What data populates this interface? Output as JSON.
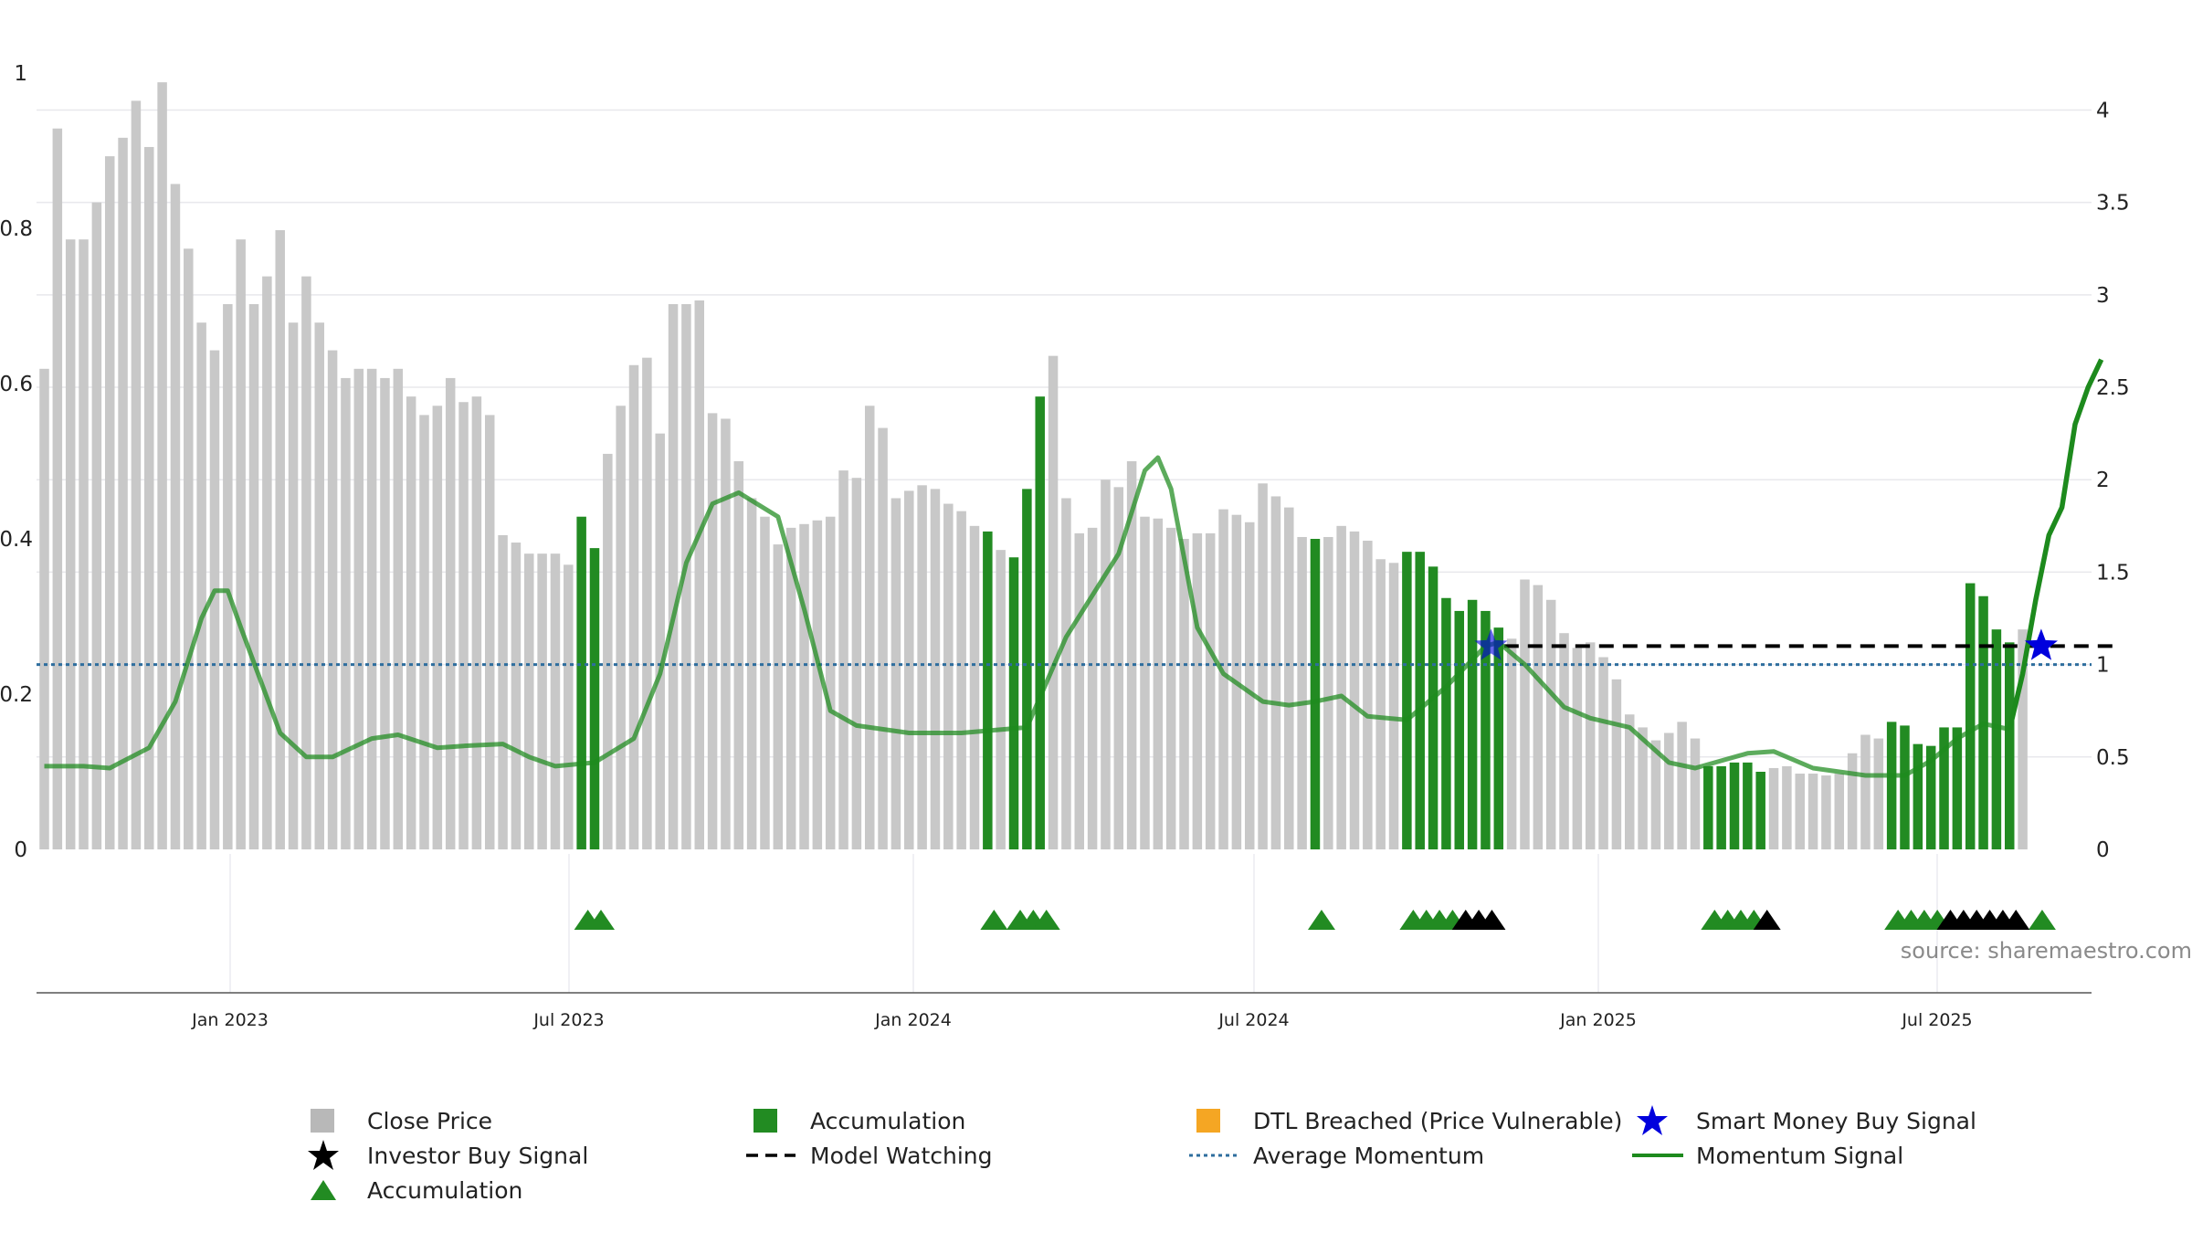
{
  "chart_data": {
    "type": "bar",
    "title": "",
    "source": "source: sharemaestro.com",
    "x_ticks": [
      "Jan 2023",
      "Jul 2023",
      "Jan 2024",
      "Jul 2024",
      "Jan 2025",
      "Jul 2025"
    ],
    "left_axis": {
      "ticks": [
        "0",
        "0.2",
        "0.4",
        "0.6",
        "0.8",
        "1"
      ],
      "ylim": [
        0,
        1
      ]
    },
    "right_axis": {
      "ticks": [
        "0",
        "0.5",
        "1",
        "1.5",
        "2",
        "2.5",
        "3",
        "3.5",
        "4"
      ],
      "ylim": [
        0,
        4.2
      ]
    },
    "grid": "horizontal",
    "close_price": [
      2.6,
      3.9,
      3.3,
      3.3,
      3.5,
      3.75,
      3.85,
      4.05,
      3.8,
      4.15,
      3.6,
      3.25,
      2.85,
      2.7,
      2.95,
      3.3,
      2.95,
      3.1,
      3.35,
      2.85,
      3.1,
      2.85,
      2.7,
      2.55,
      2.6,
      2.6,
      2.55,
      2.6,
      2.45,
      2.35,
      2.4,
      2.55,
      2.42,
      2.45,
      2.35,
      1.7,
      1.66,
      1.6,
      1.6,
      1.6,
      1.54,
      1.8,
      1.63,
      2.14,
      2.4,
      2.62,
      2.66,
      2.25,
      2.95,
      2.95,
      2.97,
      2.36,
      2.33,
      2.1,
      1.9,
      1.8,
      1.65,
      1.74,
      1.76,
      1.78,
      1.8,
      2.05,
      2.01,
      2.4,
      2.28,
      1.9,
      1.94,
      1.97,
      1.95,
      1.87,
      1.83,
      1.75,
      1.72,
      1.62,
      1.58,
      1.95,
      2.45,
      2.67,
      1.9,
      1.71,
      1.74,
      2.0,
      1.96,
      2.1,
      1.8,
      1.79,
      1.74,
      1.68,
      1.71,
      1.71,
      1.84,
      1.81,
      1.77,
      1.98,
      1.91,
      1.85,
      1.69,
      1.68,
      1.69,
      1.75,
      1.72,
      1.67,
      1.57,
      1.55,
      1.61,
      1.61,
      1.53,
      1.36,
      1.29,
      1.35,
      1.29,
      1.2,
      1.14,
      1.46,
      1.43,
      1.35,
      1.17,
      1.09,
      1.12,
      1.04,
      0.92,
      0.73,
      0.66,
      0.59,
      0.63,
      0.69,
      0.6,
      0.45,
      0.45,
      0.47,
      0.47,
      0.42,
      0.44,
      0.45,
      0.41,
      0.41,
      0.4,
      0.41,
      0.52,
      0.62,
      0.6,
      0.69,
      0.67,
      0.57,
      0.56,
      0.66,
      0.66,
      1.44,
      1.37,
      1.19,
      1.12,
      1.19
    ],
    "accumulation_bars": [
      41,
      42,
      72,
      74,
      75,
      76,
      97,
      104,
      105,
      106,
      107,
      108,
      109,
      110,
      111,
      127,
      128,
      129,
      130,
      131,
      141,
      142,
      143,
      144,
      145,
      146,
      147,
      148,
      149,
      150,
      152
    ],
    "momentum_signal": [
      [
        0,
        0.45
      ],
      [
        3,
        0.45
      ],
      [
        5,
        0.44
      ],
      [
        8,
        0.55
      ],
      [
        10,
        0.8
      ],
      [
        12,
        1.25
      ],
      [
        13,
        1.4
      ],
      [
        14,
        1.4
      ],
      [
        15,
        1.2
      ],
      [
        18,
        0.63
      ],
      [
        20,
        0.5
      ],
      [
        22,
        0.5
      ],
      [
        25,
        0.6
      ],
      [
        27,
        0.62
      ],
      [
        30,
        0.55
      ],
      [
        32,
        0.56
      ],
      [
        35,
        0.57
      ],
      [
        37,
        0.5
      ],
      [
        39,
        0.45
      ],
      [
        42,
        0.47
      ],
      [
        45,
        0.6
      ],
      [
        47,
        0.95
      ],
      [
        49,
        1.55
      ],
      [
        51,
        1.87
      ],
      [
        53,
        1.93
      ],
      [
        56,
        1.8
      ],
      [
        58,
        1.3
      ],
      [
        60,
        0.75
      ],
      [
        62,
        0.67
      ],
      [
        66,
        0.63
      ],
      [
        70,
        0.63
      ],
      [
        75,
        0.66
      ],
      [
        78,
        1.15
      ],
      [
        82,
        1.6
      ],
      [
        84,
        2.05
      ],
      [
        85,
        2.12
      ],
      [
        86,
        1.95
      ],
      [
        88,
        1.2
      ],
      [
        90,
        0.95
      ],
      [
        93,
        0.8
      ],
      [
        95,
        0.78
      ],
      [
        97,
        0.8
      ],
      [
        99,
        0.83
      ],
      [
        101,
        0.72
      ],
      [
        104,
        0.7
      ],
      [
        107,
        0.88
      ],
      [
        110,
        1.1
      ],
      [
        111,
        1.12
      ],
      [
        113,
        1.0
      ],
      [
        116,
        0.77
      ],
      [
        118,
        0.71
      ],
      [
        121,
        0.66
      ],
      [
        124,
        0.47
      ],
      [
        126,
        0.44
      ],
      [
        128,
        0.48
      ],
      [
        130,
        0.52
      ],
      [
        132,
        0.53
      ],
      [
        135,
        0.44
      ],
      [
        139,
        0.4
      ],
      [
        142,
        0.4
      ],
      [
        144,
        0.48
      ],
      [
        146,
        0.6
      ],
      [
        148,
        0.68
      ],
      [
        150,
        0.65
      ],
      [
        151,
        0.95
      ],
      [
        152,
        1.35
      ],
      [
        153,
        1.7
      ],
      [
        154,
        1.85
      ],
      [
        155,
        2.3
      ],
      [
        156,
        2.5
      ],
      [
        157,
        2.65
      ]
    ],
    "average_momentum": 1.0,
    "model_watching": {
      "start": 111,
      "end": 157,
      "value": 1.1
    },
    "smart_money_buy_signals": [
      [
        110,
        1.1
      ],
      [
        152,
        1.1
      ]
    ],
    "accumulation_markers": [
      41,
      42,
      72,
      74,
      75,
      76,
      97,
      104,
      105,
      106,
      107,
      127,
      128,
      129,
      130,
      141,
      142,
      143,
      144,
      152
    ],
    "investor_buy_markers": [
      108,
      109,
      110,
      131,
      145,
      146,
      147,
      148,
      149,
      150
    ],
    "colors": {
      "close_price": "#c8c8c8",
      "accumulation": "#228b22",
      "dtl_breached": "#f5a623",
      "momentum": "#1d8a1d",
      "average_momentum": "#2e6e9e",
      "model_watching": "#000000",
      "smart_money": "#0000dd",
      "investor_buy": "#000000",
      "grid": "#e8e8ec"
    }
  },
  "legend": {
    "close_price": "Close Price",
    "accumulation": "Accumulation",
    "dtl_breached": "DTL Breached (Price Vulnerable)",
    "smart_money": "Smart Money Buy Signal",
    "investor_buy": "Investor Buy Signal",
    "model_watching": "Model Watching",
    "average_momentum": "Average Momentum",
    "momentum_signal": "Momentum Signal",
    "accumulation_marker": "Accumulation"
  }
}
